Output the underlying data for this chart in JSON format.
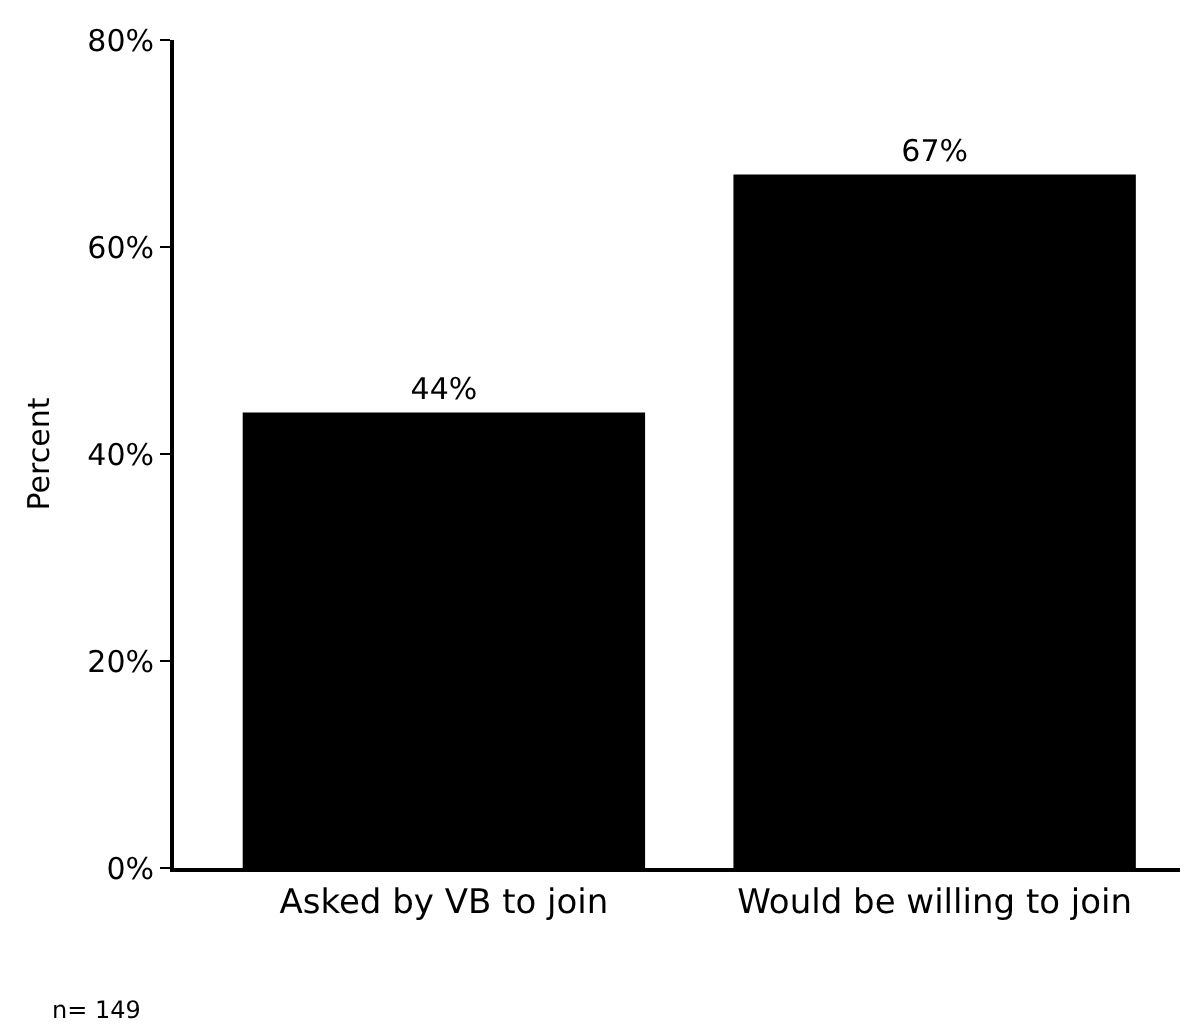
{
  "chart_data": {
    "type": "bar",
    "ylabel": "Percent",
    "categories": [
      "Asked by VB to join",
      "Would be willing to join"
    ],
    "values": [
      44,
      67
    ],
    "color": "#000000",
    "value_labels": [
      "44%",
      "67%"
    ],
    "ylim": [
      0,
      80
    ],
    "yticks": [
      {
        "value": 0,
        "label": "0%"
      },
      {
        "value": 20,
        "label": "20%"
      },
      {
        "value": 40,
        "label": "40%"
      },
      {
        "value": 60,
        "label": "60%"
      },
      {
        "value": 80,
        "label": "80%"
      }
    ],
    "legend": false,
    "annotations": [
      "n= 149"
    ]
  }
}
